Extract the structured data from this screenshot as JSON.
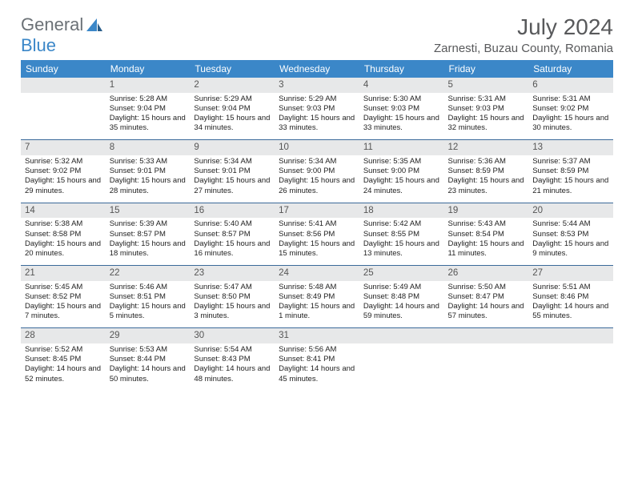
{
  "logo": {
    "text1": "General",
    "text2": "Blue"
  },
  "title": {
    "month": "July 2024",
    "location": "Zarnesti, Buzau County, Romania"
  },
  "cal": {
    "headers": [
      "Sunday",
      "Monday",
      "Tuesday",
      "Wednesday",
      "Thursday",
      "Friday",
      "Saturday"
    ],
    "colors": {
      "header_bg": "#3b87c8",
      "header_fg": "#ffffff",
      "daynum_bg": "#e7e8e9",
      "rule": "#3b6a9a"
    },
    "rows": [
      {
        "nums": [
          "",
          "1",
          "2",
          "3",
          "4",
          "5",
          "6"
        ],
        "cells": [
          {
            "empty": true
          },
          {
            "sunrise": "5:28 AM",
            "sunset": "9:04 PM",
            "day": "15 hours and 35 minutes."
          },
          {
            "sunrise": "5:29 AM",
            "sunset": "9:04 PM",
            "day": "15 hours and 34 minutes."
          },
          {
            "sunrise": "5:29 AM",
            "sunset": "9:03 PM",
            "day": "15 hours and 33 minutes."
          },
          {
            "sunrise": "5:30 AM",
            "sunset": "9:03 PM",
            "day": "15 hours and 33 minutes."
          },
          {
            "sunrise": "5:31 AM",
            "sunset": "9:03 PM",
            "day": "15 hours and 32 minutes."
          },
          {
            "sunrise": "5:31 AM",
            "sunset": "9:02 PM",
            "day": "15 hours and 30 minutes."
          }
        ]
      },
      {
        "nums": [
          "7",
          "8",
          "9",
          "10",
          "11",
          "12",
          "13"
        ],
        "cells": [
          {
            "sunrise": "5:32 AM",
            "sunset": "9:02 PM",
            "day": "15 hours and 29 minutes."
          },
          {
            "sunrise": "5:33 AM",
            "sunset": "9:01 PM",
            "day": "15 hours and 28 minutes."
          },
          {
            "sunrise": "5:34 AM",
            "sunset": "9:01 PM",
            "day": "15 hours and 27 minutes."
          },
          {
            "sunrise": "5:34 AM",
            "sunset": "9:00 PM",
            "day": "15 hours and 26 minutes."
          },
          {
            "sunrise": "5:35 AM",
            "sunset": "9:00 PM",
            "day": "15 hours and 24 minutes."
          },
          {
            "sunrise": "5:36 AM",
            "sunset": "8:59 PM",
            "day": "15 hours and 23 minutes."
          },
          {
            "sunrise": "5:37 AM",
            "sunset": "8:59 PM",
            "day": "15 hours and 21 minutes."
          }
        ]
      },
      {
        "nums": [
          "14",
          "15",
          "16",
          "17",
          "18",
          "19",
          "20"
        ],
        "cells": [
          {
            "sunrise": "5:38 AM",
            "sunset": "8:58 PM",
            "day": "15 hours and 20 minutes."
          },
          {
            "sunrise": "5:39 AM",
            "sunset": "8:57 PM",
            "day": "15 hours and 18 minutes."
          },
          {
            "sunrise": "5:40 AM",
            "sunset": "8:57 PM",
            "day": "15 hours and 16 minutes."
          },
          {
            "sunrise": "5:41 AM",
            "sunset": "8:56 PM",
            "day": "15 hours and 15 minutes."
          },
          {
            "sunrise": "5:42 AM",
            "sunset": "8:55 PM",
            "day": "15 hours and 13 minutes."
          },
          {
            "sunrise": "5:43 AM",
            "sunset": "8:54 PM",
            "day": "15 hours and 11 minutes."
          },
          {
            "sunrise": "5:44 AM",
            "sunset": "8:53 PM",
            "day": "15 hours and 9 minutes."
          }
        ]
      },
      {
        "nums": [
          "21",
          "22",
          "23",
          "24",
          "25",
          "26",
          "27"
        ],
        "cells": [
          {
            "sunrise": "5:45 AM",
            "sunset": "8:52 PM",
            "day": "15 hours and 7 minutes."
          },
          {
            "sunrise": "5:46 AM",
            "sunset": "8:51 PM",
            "day": "15 hours and 5 minutes."
          },
          {
            "sunrise": "5:47 AM",
            "sunset": "8:50 PM",
            "day": "15 hours and 3 minutes."
          },
          {
            "sunrise": "5:48 AM",
            "sunset": "8:49 PM",
            "day": "15 hours and 1 minute."
          },
          {
            "sunrise": "5:49 AM",
            "sunset": "8:48 PM",
            "day": "14 hours and 59 minutes."
          },
          {
            "sunrise": "5:50 AM",
            "sunset": "8:47 PM",
            "day": "14 hours and 57 minutes."
          },
          {
            "sunrise": "5:51 AM",
            "sunset": "8:46 PM",
            "day": "14 hours and 55 minutes."
          }
        ]
      },
      {
        "nums": [
          "28",
          "29",
          "30",
          "31",
          "",
          "",
          ""
        ],
        "cells": [
          {
            "sunrise": "5:52 AM",
            "sunset": "8:45 PM",
            "day": "14 hours and 52 minutes."
          },
          {
            "sunrise": "5:53 AM",
            "sunset": "8:44 PM",
            "day": "14 hours and 50 minutes."
          },
          {
            "sunrise": "5:54 AM",
            "sunset": "8:43 PM",
            "day": "14 hours and 48 minutes."
          },
          {
            "sunrise": "5:56 AM",
            "sunset": "8:41 PM",
            "day": "14 hours and 45 minutes."
          },
          {
            "empty": true
          },
          {
            "empty": true
          },
          {
            "empty": true
          }
        ]
      }
    ]
  },
  "labels": {
    "sunrise": "Sunrise: ",
    "sunset": "Sunset: ",
    "daylight": "Daylight: "
  }
}
